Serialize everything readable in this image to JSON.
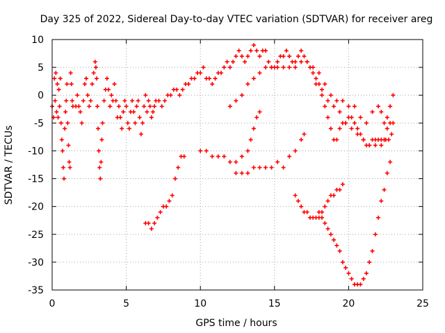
{
  "chart_data": {
    "type": "scatter",
    "title": "Day 325 of 2022, Sidereal Day-to-day VTEC variation (SDTVAR) for receiver areg",
    "xlabel": "GPS time / hours",
    "ylabel": "SDTVAR / TECUs",
    "xlim": [
      0,
      25
    ],
    "ylim": [
      -35,
      10
    ],
    "xticks": [
      0,
      5,
      10,
      15,
      20,
      25
    ],
    "yticks": [
      -35,
      -30,
      -25,
      -20,
      -15,
      -10,
      -5,
      0,
      5,
      10
    ],
    "grid": true,
    "marker": "+",
    "colors": {
      "points": "#ff0000",
      "grid": "#a0a0a0",
      "axes": "#000000"
    },
    "series": [
      {
        "values": [
          [
            0.0,
            -2
          ],
          [
            0.1,
            -4
          ],
          [
            0.15,
            3
          ],
          [
            0.2,
            -1
          ],
          [
            0.25,
            4
          ],
          [
            0.3,
            -3
          ],
          [
            0.35,
            2
          ],
          [
            0.4,
            -4
          ],
          [
            0.45,
            1
          ],
          [
            0.5,
            -2
          ],
          [
            0.55,
            3
          ],
          [
            0.6,
            -5
          ],
          [
            0.65,
            -8
          ],
          [
            0.7,
            -10
          ],
          [
            0.75,
            -13
          ],
          [
            0.8,
            -15
          ],
          [
            0.85,
            -6
          ],
          [
            0.9,
            -3
          ],
          [
            0.95,
            -1
          ],
          [
            1.0,
            2
          ],
          [
            1.05,
            -5
          ],
          [
            1.1,
            -9
          ],
          [
            1.15,
            -12
          ],
          [
            1.2,
            -13
          ],
          [
            1.25,
            4
          ],
          [
            1.3,
            2
          ],
          [
            1.35,
            -1
          ],
          [
            1.4,
            -2
          ],
          [
            1.6,
            -2
          ],
          [
            1.7,
            0
          ],
          [
            1.8,
            -2
          ],
          [
            1.9,
            -3
          ],
          [
            2.0,
            -5
          ],
          [
            2.1,
            -1
          ],
          [
            2.2,
            2
          ],
          [
            2.3,
            3
          ],
          [
            2.4,
            0
          ],
          [
            2.5,
            -2
          ],
          [
            2.6,
            -1
          ],
          [
            2.7,
            2
          ],
          [
            2.8,
            4
          ],
          [
            2.9,
            6
          ],
          [
            2.95,
            5
          ],
          [
            3.0,
            3
          ],
          [
            3.05,
            -2
          ],
          [
            3.1,
            -6
          ],
          [
            3.15,
            -10
          ],
          [
            3.2,
            -13
          ],
          [
            3.25,
            -15
          ],
          [
            3.3,
            -12
          ],
          [
            3.35,
            -8
          ],
          [
            3.4,
            -5
          ],
          [
            3.5,
            -1
          ],
          [
            3.6,
            1
          ],
          [
            3.7,
            3
          ],
          [
            3.8,
            1
          ],
          [
            3.9,
            -2
          ],
          [
            4.0,
            0
          ],
          [
            4.1,
            -1
          ],
          [
            4.2,
            2
          ],
          [
            4.3,
            -1
          ],
          [
            4.4,
            -4
          ],
          [
            4.5,
            -2
          ],
          [
            4.6,
            -4
          ],
          [
            4.7,
            -6
          ],
          [
            4.8,
            -3
          ],
          [
            4.9,
            -1
          ],
          [
            5.0,
            -2
          ],
          [
            5.1,
            -5
          ],
          [
            5.2,
            -6
          ],
          [
            5.3,
            -3
          ],
          [
            5.4,
            -1
          ],
          [
            5.5,
            -3
          ],
          [
            5.6,
            -5
          ],
          [
            5.7,
            -2
          ],
          [
            5.8,
            -1
          ],
          [
            5.9,
            -4
          ],
          [
            6.0,
            -7
          ],
          [
            6.1,
            -5
          ],
          [
            6.2,
            -2
          ],
          [
            6.3,
            0
          ],
          [
            6.4,
            -3
          ],
          [
            6.5,
            -1
          ],
          [
            6.6,
            -2
          ],
          [
            6.7,
            -4
          ],
          [
            6.8,
            -3
          ],
          [
            6.9,
            -2
          ],
          [
            7.0,
            -1
          ],
          [
            7.2,
            -1
          ],
          [
            7.4,
            -2
          ],
          [
            7.6,
            -1
          ],
          [
            7.8,
            0
          ],
          [
            8.0,
            0
          ],
          [
            8.2,
            1
          ],
          [
            8.4,
            1
          ],
          [
            8.6,
            0
          ],
          [
            8.8,
            1
          ],
          [
            9.0,
            2
          ],
          [
            9.2,
            2
          ],
          [
            9.4,
            3
          ],
          [
            9.6,
            3
          ],
          [
            9.8,
            4
          ],
          [
            10.0,
            4
          ],
          [
            10.2,
            5
          ],
          [
            10.4,
            3
          ],
          [
            10.6,
            3
          ],
          [
            10.8,
            2
          ],
          [
            11.0,
            3
          ],
          [
            11.2,
            4
          ],
          [
            11.4,
            4
          ],
          [
            11.6,
            5
          ],
          [
            11.8,
            6
          ],
          [
            12.0,
            5
          ],
          [
            12.2,
            6
          ],
          [
            12.4,
            7
          ],
          [
            12.6,
            8
          ],
          [
            12.8,
            7
          ],
          [
            13.0,
            6
          ],
          [
            13.2,
            7
          ],
          [
            13.4,
            8
          ],
          [
            13.6,
            9
          ],
          [
            13.8,
            8
          ],
          [
            14.0,
            7
          ],
          [
            14.2,
            8
          ],
          [
            14.4,
            8
          ],
          [
            14.6,
            6
          ],
          [
            14.8,
            5
          ],
          [
            15.0,
            5
          ],
          [
            15.2,
            6
          ],
          [
            15.4,
            7
          ],
          [
            15.6,
            7
          ],
          [
            15.8,
            8
          ],
          [
            16.0,
            7
          ],
          [
            16.2,
            6
          ],
          [
            16.4,
            5
          ],
          [
            16.6,
            7
          ],
          [
            16.8,
            8
          ],
          [
            17.0,
            7
          ],
          [
            17.2,
            6
          ],
          [
            17.4,
            5
          ],
          [
            17.6,
            4
          ],
          [
            17.8,
            3
          ],
          [
            18.0,
            2
          ],
          [
            18.2,
            0
          ],
          [
            18.4,
            -2
          ],
          [
            18.6,
            -4
          ],
          [
            18.8,
            -6
          ],
          [
            19.0,
            -8
          ],
          [
            19.2,
            -8
          ],
          [
            19.4,
            -6
          ],
          [
            19.6,
            -5
          ],
          [
            19.8,
            -5
          ],
          [
            20.0,
            -4
          ],
          [
            20.2,
            -4
          ],
          [
            20.4,
            -5
          ],
          [
            20.6,
            -6
          ],
          [
            20.8,
            -7
          ],
          [
            21.0,
            -8
          ],
          [
            21.2,
            -9
          ],
          [
            21.4,
            -9
          ],
          [
            21.6,
            -8
          ],
          [
            21.8,
            -8
          ],
          [
            22.0,
            -8
          ],
          [
            22.2,
            -8
          ],
          [
            22.4,
            -8
          ],
          [
            22.6,
            -6
          ],
          [
            22.8,
            -5
          ],
          [
            23.0,
            -5
          ]
        ]
      },
      {
        "values": [
          [
            12.0,
            -2
          ],
          [
            12.4,
            -1
          ],
          [
            12.8,
            0
          ],
          [
            13.2,
            2
          ],
          [
            13.6,
            3
          ],
          [
            14.0,
            4
          ],
          [
            14.4,
            5
          ],
          [
            14.8,
            5
          ],
          [
            15.2,
            5
          ],
          [
            15.6,
            5
          ],
          [
            16.0,
            5
          ],
          [
            16.4,
            6
          ],
          [
            16.8,
            6
          ],
          [
            17.2,
            6
          ],
          [
            17.6,
            5
          ],
          [
            18.0,
            4
          ],
          [
            18.4,
            2
          ],
          [
            18.8,
            0
          ],
          [
            19.2,
            -1
          ],
          [
            19.6,
            -1
          ],
          [
            20.0,
            -2
          ],
          [
            20.4,
            -2
          ],
          [
            20.8,
            -4
          ],
          [
            21.2,
            -5
          ],
          [
            21.6,
            -3
          ],
          [
            22.0,
            -2
          ],
          [
            22.2,
            -3
          ],
          [
            22.4,
            -5
          ],
          [
            22.6,
            -4
          ],
          [
            22.8,
            -2
          ],
          [
            23.0,
            0
          ],
          [
            22.9,
            -7
          ],
          [
            22.7,
            -8
          ],
          [
            22.5,
            -8
          ],
          [
            22.2,
            -9
          ],
          [
            21.8,
            -9
          ],
          [
            21.4,
            -9
          ],
          [
            21.0,
            -8
          ],
          [
            20.6,
            -7
          ],
          [
            20.2,
            -6
          ],
          [
            19.8,
            -5
          ],
          [
            19.4,
            -3
          ],
          [
            19.0,
            -2
          ],
          [
            18.6,
            -1
          ],
          [
            18.2,
            1
          ],
          [
            17.8,
            2
          ]
        ]
      },
      {
        "values": [
          [
            6.3,
            -23
          ],
          [
            6.5,
            -23
          ],
          [
            6.7,
            -24
          ],
          [
            6.9,
            -23
          ],
          [
            7.1,
            -22
          ],
          [
            7.3,
            -21
          ],
          [
            7.5,
            -20
          ],
          [
            7.7,
            -20
          ],
          [
            7.9,
            -19
          ],
          [
            8.1,
            -18
          ],
          [
            8.3,
            -15
          ],
          [
            8.5,
            -13
          ],
          [
            8.7,
            -11
          ],
          [
            8.9,
            -11
          ]
        ]
      },
      {
        "values": [
          [
            10.0,
            -10
          ],
          [
            10.4,
            -10
          ],
          [
            10.8,
            -11
          ],
          [
            11.2,
            -11
          ],
          [
            11.6,
            -11
          ],
          [
            12.0,
            -12
          ],
          [
            12.4,
            -12
          ],
          [
            12.8,
            -11
          ],
          [
            13.2,
            -10
          ],
          [
            13.4,
            -8
          ],
          [
            13.6,
            -6
          ],
          [
            13.8,
            -4
          ],
          [
            14.0,
            -3
          ]
        ]
      },
      {
        "values": [
          [
            12.4,
            -14
          ],
          [
            12.8,
            -14
          ],
          [
            13.2,
            -14
          ],
          [
            13.6,
            -13
          ],
          [
            14.0,
            -13
          ],
          [
            14.4,
            -13
          ],
          [
            14.8,
            -13
          ],
          [
            15.2,
            -12
          ],
          [
            15.6,
            -13
          ],
          [
            16.0,
            -11
          ],
          [
            16.4,
            -10
          ],
          [
            16.8,
            -8
          ],
          [
            17.0,
            -7
          ]
        ]
      },
      {
        "values": [
          [
            16.4,
            -18
          ],
          [
            16.6,
            -19
          ],
          [
            16.8,
            -20
          ],
          [
            17.0,
            -21
          ],
          [
            17.2,
            -21
          ],
          [
            17.4,
            -22
          ],
          [
            17.6,
            -22
          ],
          [
            17.8,
            -22
          ],
          [
            18.0,
            -22
          ],
          [
            18.2,
            -21
          ],
          [
            18.4,
            -20
          ],
          [
            18.6,
            -19
          ],
          [
            18.8,
            -18
          ],
          [
            19.0,
            -18
          ],
          [
            19.2,
            -17
          ],
          [
            19.4,
            -17
          ],
          [
            19.6,
            -16
          ]
        ]
      },
      {
        "values": [
          [
            18.0,
            -21
          ],
          [
            18.2,
            -22
          ],
          [
            18.4,
            -23
          ],
          [
            18.6,
            -24
          ],
          [
            18.8,
            -25
          ],
          [
            19.0,
            -26
          ],
          [
            19.2,
            -27
          ],
          [
            19.4,
            -28
          ],
          [
            19.6,
            -30
          ],
          [
            19.8,
            -31
          ],
          [
            20.0,
            -32
          ],
          [
            20.2,
            -33
          ],
          [
            20.4,
            -34
          ],
          [
            20.6,
            -34
          ],
          [
            20.8,
            -34
          ],
          [
            21.0,
            -33
          ],
          [
            21.2,
            -32
          ],
          [
            21.4,
            -30
          ],
          [
            21.6,
            -28
          ],
          [
            21.8,
            -25
          ],
          [
            22.0,
            -22
          ],
          [
            22.2,
            -19
          ],
          [
            22.4,
            -17
          ],
          [
            22.6,
            -14
          ],
          [
            22.8,
            -12
          ]
        ]
      }
    ]
  }
}
